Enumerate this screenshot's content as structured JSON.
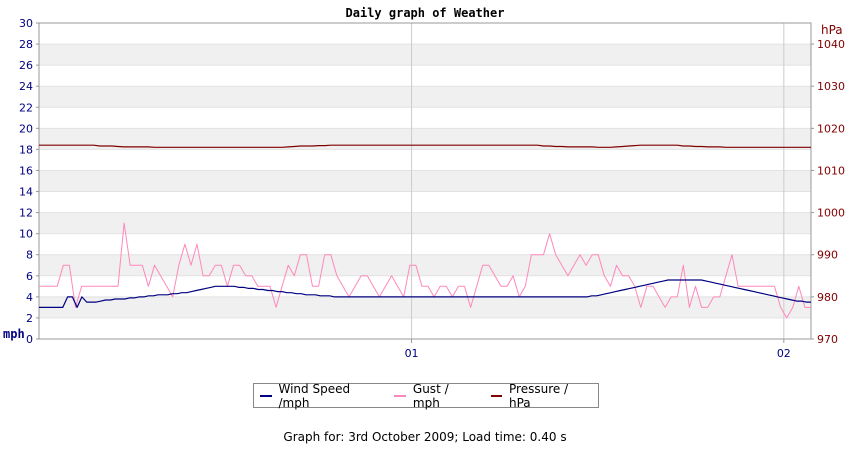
{
  "chart_data": {
    "type": "line",
    "title": "Daily graph of Weather",
    "y_left_label": "mph",
    "y_right_label": "hPa",
    "y_left_lim": [
      0,
      30
    ],
    "y_left_ticks": [
      0,
      2,
      4,
      6,
      8,
      10,
      12,
      14,
      16,
      18,
      20,
      22,
      24,
      26,
      28,
      30
    ],
    "y_right_lim": [
      970,
      1045
    ],
    "y_right_ticks": [
      970,
      980,
      990,
      1000,
      1010,
      1020,
      1030,
      1040
    ],
    "x_ticks": [
      {
        "label": "01",
        "frac": 0.4826
      },
      {
        "label": "02",
        "frac": 0.9648
      }
    ],
    "grid": true,
    "legend_position": "bottom",
    "colors": {
      "wind": "#000080",
      "gust": "#ff88bb",
      "pressure": "#800000",
      "left_axis_text": "#000080",
      "right_axis_text": "#800000",
      "band": "#f0f0f0",
      "plot_border": "#999999"
    },
    "series": [
      {
        "name": "Wind Speed /mph",
        "axis": "left",
        "color": "#000080",
        "values": [
          3,
          3,
          3,
          3,
          3,
          3,
          4,
          4,
          3,
          4,
          3.5,
          3.5,
          3.5,
          3.6,
          3.7,
          3.7,
          3.8,
          3.8,
          3.8,
          3.9,
          3.9,
          4,
          4,
          4.1,
          4.1,
          4.2,
          4.2,
          4.2,
          4.3,
          4.3,
          4.4,
          4.4,
          4.5,
          4.6,
          4.7,
          4.8,
          4.9,
          5,
          5,
          5,
          5,
          5,
          4.9,
          4.9,
          4.8,
          4.8,
          4.7,
          4.7,
          4.6,
          4.6,
          4.5,
          4.5,
          4.4,
          4.4,
          4.3,
          4.3,
          4.2,
          4.2,
          4.2,
          4.1,
          4.1,
          4.1,
          4,
          4,
          4,
          4,
          4,
          4,
          4,
          4,
          4,
          4,
          4,
          4,
          4,
          4,
          4,
          4,
          4,
          4,
          4,
          4,
          4,
          4,
          4,
          4,
          4,
          4,
          4,
          4,
          4,
          4,
          4,
          4,
          4,
          4,
          4,
          4,
          4,
          4,
          4,
          4,
          4,
          4,
          4,
          4,
          4,
          4,
          4,
          4,
          4,
          4,
          4,
          4,
          4,
          4,
          4.1,
          4.1,
          4.2,
          4.3,
          4.4,
          4.5,
          4.6,
          4.7,
          4.8,
          4.9,
          5,
          5.1,
          5.2,
          5.3,
          5.4,
          5.5,
          5.6,
          5.6,
          5.6,
          5.6,
          5.6,
          5.6,
          5.6,
          5.6,
          5.5,
          5.4,
          5.3,
          5.2,
          5.1,
          5,
          4.9,
          4.8,
          4.7,
          4.6,
          4.5,
          4.4,
          4.3,
          4.2,
          4.1,
          4,
          3.9,
          3.8,
          3.7,
          3.6,
          3.6,
          3.5,
          3.5
        ]
      },
      {
        "name": "Gust / mph",
        "axis": "left",
        "color": "#ff88bb",
        "values": [
          5,
          5,
          5,
          5,
          7,
          7,
          3,
          5,
          5,
          5,
          5,
          5,
          5,
          5,
          11,
          7,
          7,
          7,
          5,
          7,
          6,
          5,
          4,
          7,
          9,
          7,
          9,
          6,
          6,
          7,
          7,
          5,
          7,
          7,
          6,
          6,
          5,
          5,
          5,
          3,
          5,
          7,
          6,
          8,
          8,
          5,
          5,
          8,
          8,
          6,
          5,
          4,
          5,
          6,
          6,
          5,
          4,
          5,
          6,
          5,
          4,
          7,
          7,
          5,
          5,
          4,
          5,
          5,
          4,
          5,
          5,
          3,
          5,
          7,
          7,
          6,
          5,
          5,
          6,
          4,
          5,
          8,
          8,
          8,
          10,
          8,
          7,
          6,
          7,
          8,
          7,
          8,
          8,
          6,
          5,
          7,
          6,
          6,
          5,
          3,
          5,
          5,
          4,
          3,
          4,
          4,
          7,
          3,
          5,
          3,
          3,
          4,
          4,
          6,
          8,
          5,
          5,
          5,
          5,
          5,
          5,
          5,
          3,
          2,
          3,
          5,
          3,
          3
        ]
      },
      {
        "name": "Pressure / hPa",
        "axis": "right",
        "color": "#800000",
        "values": [
          1016,
          1016,
          1016,
          1016,
          1016,
          1016,
          1016,
          1016,
          1016,
          1016,
          1015.8,
          1015.8,
          1015.8,
          1015.7,
          1015.6,
          1015.6,
          1015.6,
          1015.6,
          1015.6,
          1015.5,
          1015.5,
          1015.5,
          1015.5,
          1015.5,
          1015.5,
          1015.5,
          1015.5,
          1015.5,
          1015.5,
          1015.5,
          1015.5,
          1015.5,
          1015.5,
          1015.5,
          1015.5,
          1015.5,
          1015.5,
          1015.5,
          1015.5,
          1015.5,
          1015.5,
          1015.6,
          1015.7,
          1015.8,
          1015.8,
          1015.8,
          1015.9,
          1015.9,
          1016,
          1016,
          1016,
          1016,
          1016,
          1016,
          1016,
          1016,
          1016,
          1016,
          1016,
          1016,
          1016,
          1016,
          1016,
          1016,
          1016,
          1016,
          1016,
          1016,
          1016,
          1016,
          1016,
          1016,
          1016,
          1016,
          1016,
          1016,
          1016,
          1016,
          1016,
          1016,
          1016,
          1016,
          1016,
          1015.8,
          1015.8,
          1015.7,
          1015.7,
          1015.6,
          1015.6,
          1015.6,
          1015.6,
          1015.6,
          1015.5,
          1015.5,
          1015.5,
          1015.6,
          1015.7,
          1015.8,
          1015.9,
          1016,
          1016,
          1016,
          1016,
          1016,
          1016,
          1016,
          1015.8,
          1015.8,
          1015.7,
          1015.7,
          1015.6,
          1015.6,
          1015.6,
          1015.5,
          1015.5,
          1015.5,
          1015.5,
          1015.5,
          1015.5,
          1015.5,
          1015.5,
          1015.5,
          1015.5,
          1015.5,
          1015.5,
          1015.5,
          1015.5,
          1015.5
        ]
      }
    ]
  },
  "legend": {
    "wind_label": "Wind Speed /mph",
    "gust_label": "Gust / mph",
    "pressure_label": "Pressure / hPa"
  },
  "footer": {
    "caption": "Graph for: 3rd October 2009; Load time: 0.40 s"
  }
}
